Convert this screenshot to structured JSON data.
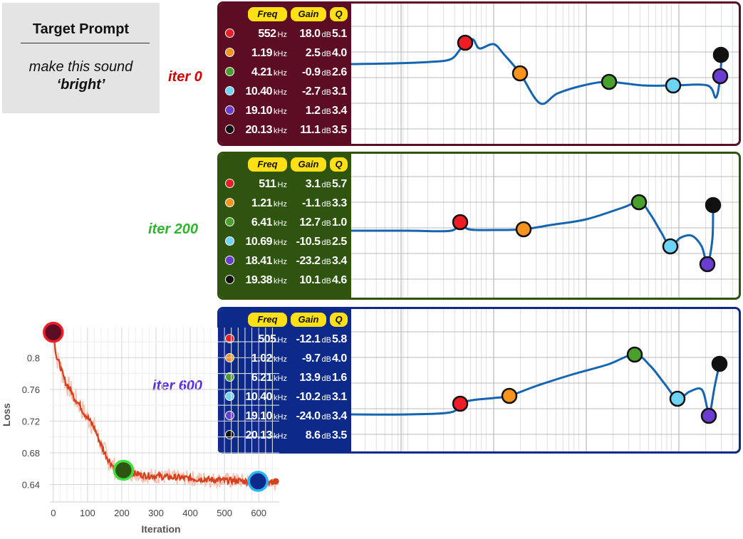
{
  "prompt": {
    "title": "Target Prompt",
    "line1": "make this sound",
    "line2": "‘bright’"
  },
  "headers": {
    "freq": "Freq",
    "gain": "Gain",
    "q": "Q"
  },
  "colors": {
    "red": "#ee1c25",
    "orange": "#f7941d",
    "green": "#4aa02c",
    "lightblue": "#6dd3f7",
    "purple": "#6a3ccf",
    "black": "#111111",
    "curve": "#1565b0"
  },
  "panels": [
    {
      "label": "iter 0",
      "label_color": "#d40000",
      "border": "#5c0d24",
      "bands": [
        {
          "color": "#ee1c25",
          "freq": "552",
          "freq_unit": "Hz",
          "gain": "18.0",
          "gain_unit": "dB",
          "q": "5.1"
        },
        {
          "color": "#f7941d",
          "freq": "1.19",
          "freq_unit": "kHz",
          "gain": "2.5",
          "gain_unit": "dB",
          "q": "4.0"
        },
        {
          "color": "#4aa02c",
          "freq": "4.21",
          "freq_unit": "kHz",
          "gain": "-0.9",
          "gain_unit": "dB",
          "q": "2.6"
        },
        {
          "color": "#6dd3f7",
          "freq": "10.40",
          "freq_unit": "kHz",
          "gain": "-2.7",
          "gain_unit": "dB",
          "q": "3.1"
        },
        {
          "color": "#6a3ccf",
          "freq": "19.10",
          "freq_unit": "kHz",
          "gain": "1.2",
          "gain_unit": "dB",
          "q": "3.4"
        },
        {
          "color": "#111111",
          "freq": "20.13",
          "freq_unit": "kHz",
          "gain": "11.1",
          "gain_unit": "dB",
          "q": "3.5"
        }
      ]
    },
    {
      "label": "iter 200",
      "label_color": "#2db52d",
      "border": "#2e5410",
      "bands": [
        {
          "color": "#ee1c25",
          "freq": "511",
          "freq_unit": "Hz",
          "gain": "3.1",
          "gain_unit": "dB",
          "q": "5.7"
        },
        {
          "color": "#f7941d",
          "freq": "1.21",
          "freq_unit": "kHz",
          "gain": "-1.1",
          "gain_unit": "dB",
          "q": "3.3"
        },
        {
          "color": "#4aa02c",
          "freq": "6.41",
          "freq_unit": "kHz",
          "gain": "12.7",
          "gain_unit": "dB",
          "q": "1.0"
        },
        {
          "color": "#6dd3f7",
          "freq": "10.69",
          "freq_unit": "kHz",
          "gain": "-10.5",
          "gain_unit": "dB",
          "q": "2.5"
        },
        {
          "color": "#6a3ccf",
          "freq": "18.41",
          "freq_unit": "kHz",
          "gain": "-23.2",
          "gain_unit": "dB",
          "q": "3.4"
        },
        {
          "color": "#111111",
          "freq": "19.38",
          "freq_unit": "kHz",
          "gain": "10.1",
          "gain_unit": "dB",
          "q": "4.6"
        }
      ]
    },
    {
      "label": "iter 600",
      "label_color": "#5a2ee0",
      "border": "#0d2a8a",
      "bands": [
        {
          "color": "#ee1c25",
          "freq": "505",
          "freq_unit": "Hz",
          "gain": "-12.1",
          "gain_unit": "dB",
          "q": "5.8"
        },
        {
          "color": "#f7941d",
          "freq": "1.02",
          "freq_unit": "kHz",
          "gain": "-9.7",
          "gain_unit": "dB",
          "q": "4.0"
        },
        {
          "color": "#4aa02c",
          "freq": "6.21",
          "freq_unit": "kHz",
          "gain": "13.9",
          "gain_unit": "dB",
          "q": "1.6"
        },
        {
          "color": "#6dd3f7",
          "freq": "10.40",
          "freq_unit": "kHz",
          "gain": "-10.2",
          "gain_unit": "dB",
          "q": "3.1"
        },
        {
          "color": "#6a3ccf",
          "freq": "19.10",
          "freq_unit": "kHz",
          "gain": "-24.0",
          "gain_unit": "dB",
          "q": "3.4"
        },
        {
          "color": "#111111",
          "freq": "20.13",
          "freq_unit": "kHz",
          "gain": "8.6",
          "gain_unit": "dB",
          "q": "3.5"
        }
      ]
    }
  ],
  "chart_data": {
    "type": "line",
    "xlabel": "Iteration",
    "ylabel": "Loss",
    "xlim": [
      -10,
      660
    ],
    "ylim": [
      0.618,
      0.838
    ],
    "xticks": [
      0,
      100,
      200,
      300,
      400,
      500,
      600
    ],
    "yticks": [
      0.64,
      0.68,
      0.72,
      0.76,
      0.8
    ],
    "ytick_labels": [
      "0.64",
      "0.68",
      "0.72",
      "0.76",
      "0.8"
    ],
    "grid": true,
    "series": [
      {
        "x": [
          0,
          10,
          20,
          30,
          40,
          50,
          60,
          70,
          80,
          90,
          100,
          110,
          120,
          130,
          140,
          150,
          160,
          170,
          180,
          190,
          200,
          220,
          240,
          260,
          280,
          300,
          320,
          340,
          360,
          380,
          400,
          420,
          440,
          460,
          480,
          500,
          520,
          540,
          560,
          580,
          600,
          620,
          640,
          650
        ],
        "y": [
          0.83,
          0.8,
          0.79,
          0.775,
          0.765,
          0.76,
          0.75,
          0.745,
          0.738,
          0.73,
          0.725,
          0.718,
          0.712,
          0.7,
          0.69,
          0.68,
          0.672,
          0.666,
          0.66,
          0.657,
          0.656,
          0.655,
          0.654,
          0.652,
          0.651,
          0.651,
          0.65,
          0.649,
          0.649,
          0.648,
          0.648,
          0.647,
          0.647,
          0.646,
          0.646,
          0.645,
          0.645,
          0.645,
          0.644,
          0.644,
          0.644,
          0.644,
          0.643,
          0.644
        ]
      }
    ],
    "markers": [
      {
        "label": "iter 0",
        "x": 0,
        "y": 0.832,
        "fill": "#5c0d24",
        "ring": "#ee1c25"
      },
      {
        "label": "iter 200",
        "x": 205,
        "y": 0.658,
        "fill": "#2e5410",
        "ring": "#3ee03e"
      },
      {
        "label": "iter 600",
        "x": 598,
        "y": 0.644,
        "fill": "#0d2a8a",
        "ring": "#29b6f6"
      }
    ]
  }
}
